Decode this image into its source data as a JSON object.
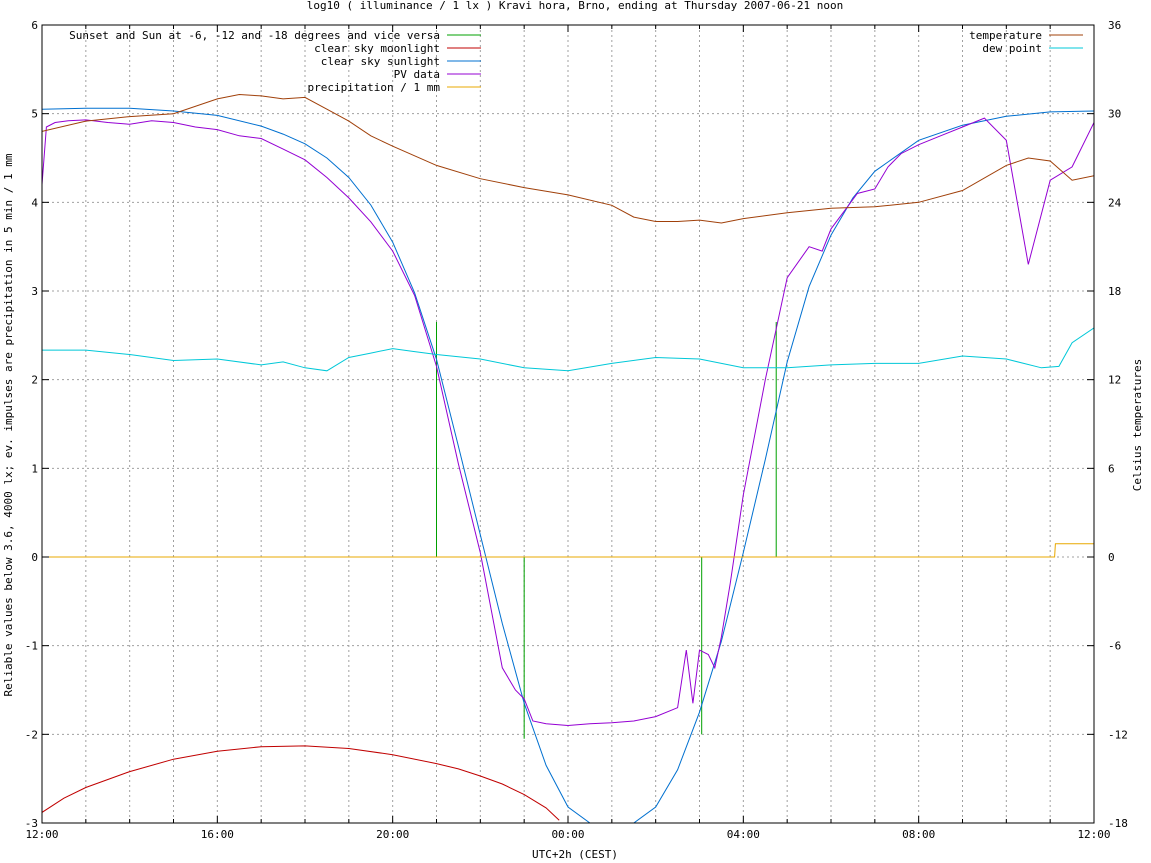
{
  "chart_data": {
    "type": "line",
    "title": "log10 ( illuminance / 1 lx ) Kravi hora, Brno, ending at Thursday 2007-06-21 noon",
    "xlabel": "UTC+2h (CEST)",
    "ylabel": "Reliable values below 3.6, 4000 lx; ev. impulses are precipitation in 5 min / 1 mm",
    "y2label": "Celsius temperatures",
    "x_unit": "hours since 12:00",
    "xlim": [
      0,
      24
    ],
    "ylim": [
      -3,
      6
    ],
    "y2lim": [
      -18,
      36
    ],
    "grid": true,
    "x_ticks": [
      "12:00",
      "16:00",
      "20:00",
      "00:00",
      "04:00",
      "08:00",
      "12:00"
    ],
    "y_ticks": [
      "-3",
      "-2",
      "-1",
      "0",
      "1",
      "2",
      "3",
      "4",
      "5",
      "6"
    ],
    "y2_ticks": [
      "-18",
      "-12",
      "-6",
      "0",
      "6",
      "12",
      "18",
      "24",
      "30",
      "36"
    ],
    "legend_left": "top-left",
    "legend_right": "top-right",
    "colors": {
      "twilight": "#00a000",
      "moon": "#c00000",
      "sun": "#0070d0",
      "pv": "#9400d3",
      "precip": "#e8a800",
      "temperature": "#a0400a",
      "dewpoint": "#00c8d8"
    },
    "series": [
      {
        "name": "Sunset and Sun at -6, -12 and -18 degrees and vice versa",
        "axis": "y1",
        "type": "impulse",
        "x": [
          9.0,
          9.75,
          11.0,
          15.05,
          16.0,
          16.75
        ],
        "values": [
          2.65,
          0,
          -2.05,
          -2.0,
          0,
          2.65
        ]
      },
      {
        "name": "clear sky moonlight",
        "axis": "y1",
        "x": [
          0.0,
          0.5,
          1.0,
          2.0,
          3.0,
          4.0,
          5.0,
          6.0,
          7.0,
          8.0,
          9.0,
          9.5,
          10.0,
          10.5,
          11.0,
          11.5,
          11.8
        ],
        "values": [
          -2.88,
          -2.72,
          -2.6,
          -2.42,
          -2.28,
          -2.19,
          -2.14,
          -2.13,
          -2.16,
          -2.23,
          -2.33,
          -2.39,
          -2.47,
          -2.56,
          -2.68,
          -2.83,
          -2.97
        ]
      },
      {
        "name": "clear sky sunlight",
        "axis": "y1",
        "x": [
          0.0,
          1.0,
          2.0,
          3.0,
          4.0,
          5.0,
          5.5,
          6.0,
          6.5,
          7.0,
          7.5,
          8.0,
          8.5,
          9.0,
          9.5,
          10.0,
          10.5,
          11.0,
          11.5,
          12.0,
          12.5,
          13.0,
          13.5,
          14.0,
          14.5,
          15.0,
          15.5,
          16.0,
          16.5,
          17.0,
          17.5,
          18.0,
          18.5,
          19.0,
          20.0,
          21.0,
          22.0,
          23.0,
          24.0
        ],
        "values": [
          5.05,
          5.06,
          5.06,
          5.03,
          4.98,
          4.86,
          4.77,
          4.66,
          4.5,
          4.28,
          3.97,
          3.55,
          2.98,
          2.23,
          1.25,
          0.25,
          -0.75,
          -1.65,
          -2.35,
          -2.82,
          -3.0,
          -3.0,
          -3.0,
          -2.82,
          -2.4,
          -1.75,
          -0.95,
          0.05,
          1.1,
          2.2,
          3.05,
          3.63,
          4.05,
          4.35,
          4.7,
          4.87,
          4.97,
          5.02,
          5.03
        ]
      },
      {
        "name": "PV data",
        "axis": "y1",
        "x": [
          0.0,
          0.1,
          0.3,
          0.6,
          1.0,
          1.5,
          2.0,
          2.5,
          3.0,
          3.5,
          4.0,
          4.5,
          5.0,
          5.5,
          6.0,
          6.5,
          7.0,
          7.5,
          8.0,
          8.5,
          9.0,
          9.5,
          10.0,
          10.5,
          10.8,
          11.0,
          11.2,
          11.5,
          12.0,
          12.5,
          13.0,
          13.5,
          14.0,
          14.5,
          14.7,
          14.85,
          15.0,
          15.2,
          15.35,
          15.5,
          15.7,
          16.0,
          16.5,
          17.0,
          17.5,
          17.8,
          18.0,
          18.3,
          18.6,
          19.0,
          19.3,
          19.6,
          20.0,
          20.5,
          21.0,
          21.5,
          22.0,
          22.5,
          23.0,
          23.5,
          24.0
        ],
        "values": [
          4.2,
          4.85,
          4.9,
          4.92,
          4.93,
          4.9,
          4.88,
          4.92,
          4.9,
          4.85,
          4.82,
          4.75,
          4.72,
          4.6,
          4.48,
          4.28,
          4.05,
          3.78,
          3.45,
          2.95,
          2.15,
          1.05,
          0.05,
          -1.25,
          -1.5,
          -1.6,
          -1.85,
          -1.88,
          -1.9,
          -1.88,
          -1.87,
          -1.85,
          -1.8,
          -1.7,
          -1.05,
          -1.65,
          -1.05,
          -1.1,
          -1.25,
          -0.9,
          -0.3,
          0.7,
          2.0,
          3.15,
          3.5,
          3.45,
          3.7,
          3.9,
          4.1,
          4.15,
          4.4,
          4.55,
          4.65,
          4.75,
          4.85,
          4.95,
          4.7,
          3.3,
          4.25,
          4.4,
          4.9
        ]
      },
      {
        "name": "precipitation / 1 mm",
        "axis": "y1",
        "x": [
          0.0,
          23.1,
          23.12,
          24.0
        ],
        "values": [
          0.0,
          0.0,
          0.15,
          0.15
        ]
      },
      {
        "name": "temperature",
        "axis": "y2",
        "x": [
          0.0,
          1.0,
          2.0,
          3.0,
          4.0,
          4.5,
          5.0,
          5.5,
          6.0,
          6.5,
          7.0,
          7.5,
          8.0,
          9.0,
          10.0,
          11.0,
          12.0,
          13.0,
          13.5,
          14.0,
          14.5,
          15.0,
          15.5,
          16.0,
          17.0,
          18.0,
          19.0,
          20.0,
          21.0,
          22.0,
          22.5,
          23.0,
          23.5,
          24.0
        ],
        "values": [
          28.8,
          29.5,
          29.8,
          30.0,
          31.0,
          31.3,
          31.2,
          31.0,
          31.1,
          30.3,
          29.5,
          28.5,
          27.8,
          26.5,
          25.6,
          25.0,
          24.5,
          23.8,
          23.0,
          22.7,
          22.7,
          22.8,
          22.6,
          22.9,
          23.3,
          23.6,
          23.7,
          24.0,
          24.8,
          26.5,
          27.0,
          26.8,
          25.5,
          25.8
        ]
      },
      {
        "name": "dew point",
        "axis": "y2",
        "x": [
          0.0,
          1.0,
          2.0,
          3.0,
          4.0,
          5.0,
          5.5,
          6.0,
          6.5,
          7.0,
          7.5,
          8.0,
          8.5,
          9.0,
          10.0,
          11.0,
          12.0,
          13.0,
          14.0,
          15.0,
          16.0,
          17.0,
          18.0,
          19.0,
          20.0,
          21.0,
          22.0,
          22.8,
          23.2,
          23.5,
          24.0
        ],
        "values": [
          14.0,
          14.0,
          13.7,
          13.3,
          13.4,
          13.0,
          13.2,
          12.8,
          12.6,
          13.5,
          13.8,
          14.1,
          13.9,
          13.7,
          13.4,
          12.8,
          12.6,
          13.1,
          13.5,
          13.4,
          12.8,
          12.8,
          13.0,
          13.1,
          13.1,
          13.6,
          13.4,
          12.8,
          12.9,
          14.5,
          15.5
        ]
      }
    ]
  }
}
